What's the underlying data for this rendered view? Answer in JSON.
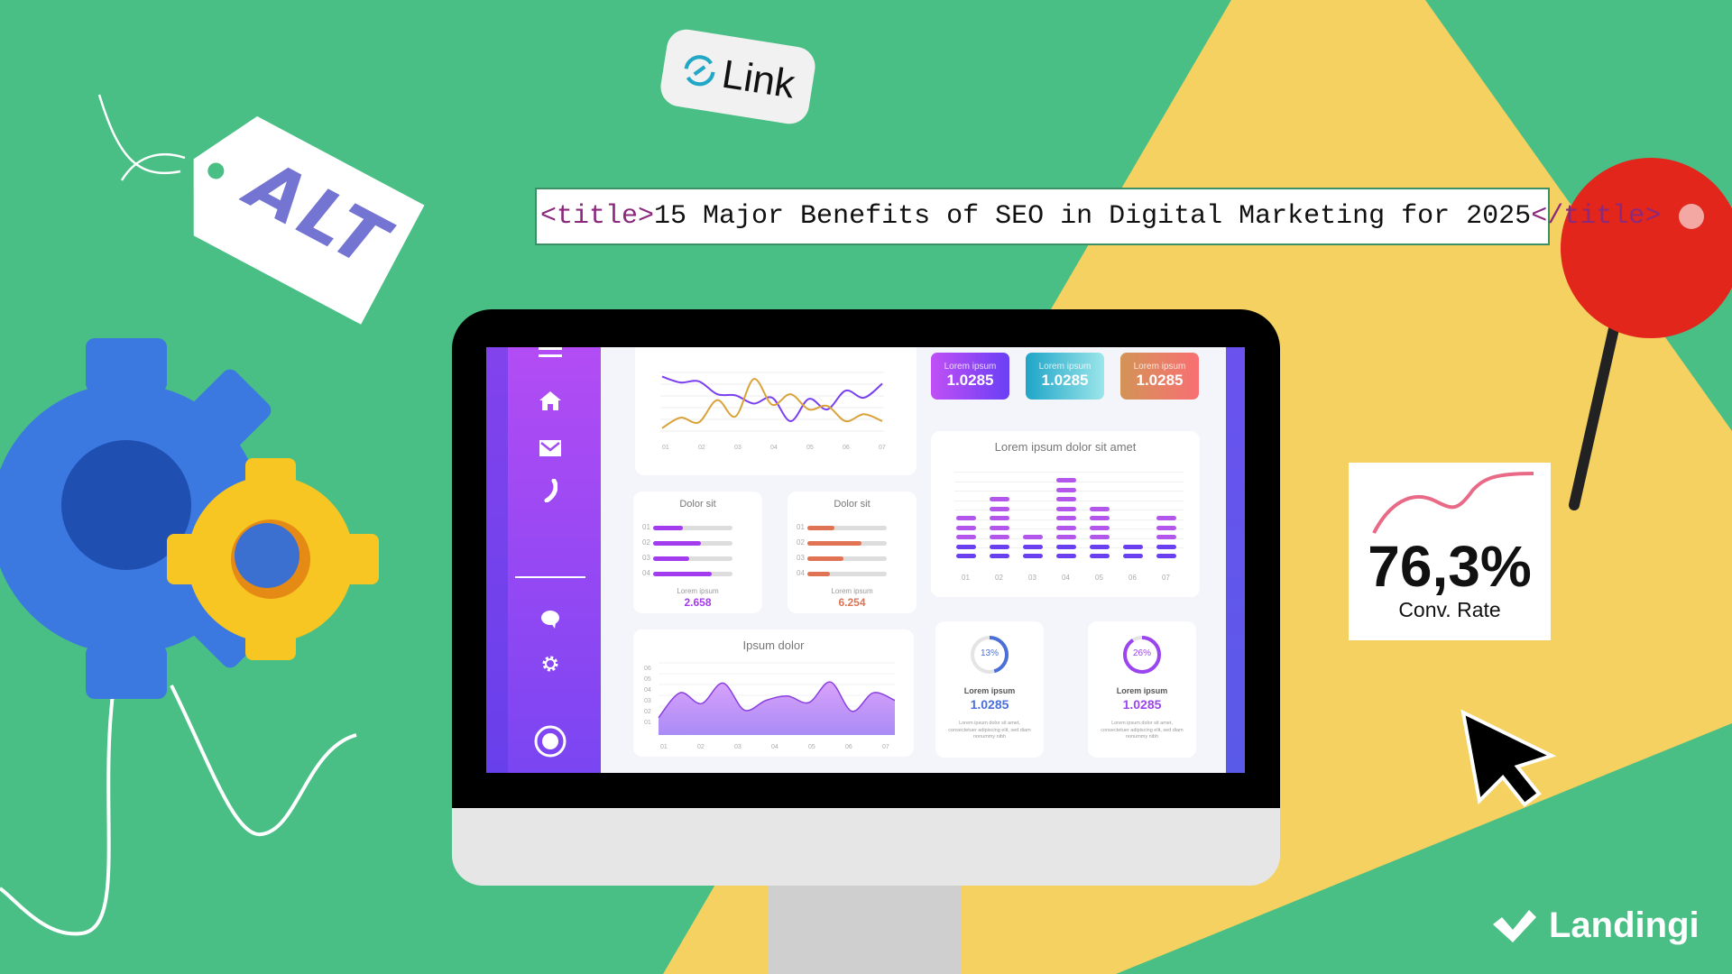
{
  "colors": {
    "background": "#49bf85",
    "yellow": "#f4d160",
    "title_tag": "#8b2a7d",
    "alt_text": "#7474d2",
    "pin": "#e2261c"
  },
  "title_bar": {
    "open_tag": "<title>",
    "text": "15 Major Benefits of SEO in Digital Marketing for 2025",
    "close_tag": "</title>"
  },
  "link_badge": {
    "icon": "link-icon",
    "label": "Link"
  },
  "alt_tag": {
    "label": "ALT"
  },
  "conv_card": {
    "value": "76,3%",
    "label": "Conv. Rate"
  },
  "logo": {
    "name": "Landingi"
  },
  "dashboard": {
    "sidebar": {
      "icons": [
        "menu-icon",
        "home-icon",
        "mail-icon",
        "phone-icon",
        "chat-icon",
        "gear-icon",
        "record-icon"
      ]
    },
    "line_chart": {
      "x_ticks": [
        "01",
        "02",
        "03",
        "04",
        "05",
        "06",
        "07"
      ],
      "series": [
        {
          "color": "#7a3ff0",
          "values": [
            4.8,
            4.3,
            4.4,
            3.3,
            3.2,
            2.5,
            3.0,
            1.0,
            2.9,
            2.0,
            3.6,
            3.0,
            4.2
          ]
        },
        {
          "color": "#d9a33a",
          "values": [
            0.4,
            1.3,
            0.9,
            2.8,
            1.4,
            4.6,
            2.4,
            3.3,
            2.0,
            2.3,
            1.0,
            1.6,
            1.0
          ]
        }
      ]
    },
    "stats": [
      {
        "label": "Lorem ipsum",
        "value": "1.0285",
        "from": "#c050f5",
        "to": "#6a3ff5"
      },
      {
        "label": "Lorem ipsum",
        "value": "1.0285",
        "from": "#1fa5c8",
        "to": "#9be6ea"
      },
      {
        "label": "Lorem ipsum",
        "value": "1.0285",
        "from": "#d39456",
        "to": "#f86f73"
      }
    ],
    "progress_cards": [
      {
        "title": "Dolor sit",
        "rows": [
          "01",
          "02",
          "03",
          "04"
        ],
        "values": [
          0.37,
          0.6,
          0.46,
          0.74
        ],
        "caption": "Lorem ipsum",
        "value": "2.658",
        "color": "#a33bef"
      },
      {
        "title": "Dolor sit",
        "rows": [
          "01",
          "02",
          "03",
          "04"
        ],
        "values": [
          0.34,
          0.68,
          0.46,
          0.28
        ],
        "caption": "Lorem ipsum",
        "value": "6.254",
        "color": "#e07354"
      }
    ],
    "bar_chart": {
      "title": "Lorem ipsum dolor sit amet",
      "x_ticks": [
        "01",
        "02",
        "03",
        "04",
        "05",
        "06",
        "07"
      ],
      "values": [
        5,
        7,
        3,
        9,
        6,
        2,
        5
      ]
    },
    "area_chart": {
      "title": "Ipsum dolor",
      "x_ticks": [
        "01",
        "02",
        "03",
        "04",
        "05",
        "06",
        "07"
      ],
      "y_ticks": [
        "01",
        "02",
        "03",
        "04",
        "05",
        "06"
      ],
      "values": [
        1.6,
        3.9,
        2.9,
        4.8,
        2.3,
        3.2,
        3.6,
        3.0,
        4.9,
        2.2,
        3.9,
        3.2
      ]
    },
    "donuts": [
      {
        "percent": "13%",
        "fraction": 0.13,
        "label": "Lorem ipsum",
        "value": "1.0285",
        "text": "Lorem ipsum dolor sit amet, consectetuer adipiscing elit, sed diam nonummy nibh",
        "color": "#4b6fd8"
      },
      {
        "percent": "26%",
        "fraction": 0.26,
        "label": "Lorem ipsum",
        "value": "1.0285",
        "text": "Lorem ipsum dolor sit amet, consectetuer adipiscing elit, sed diam nonummy nibh",
        "color": "#9b45f0"
      }
    ]
  }
}
